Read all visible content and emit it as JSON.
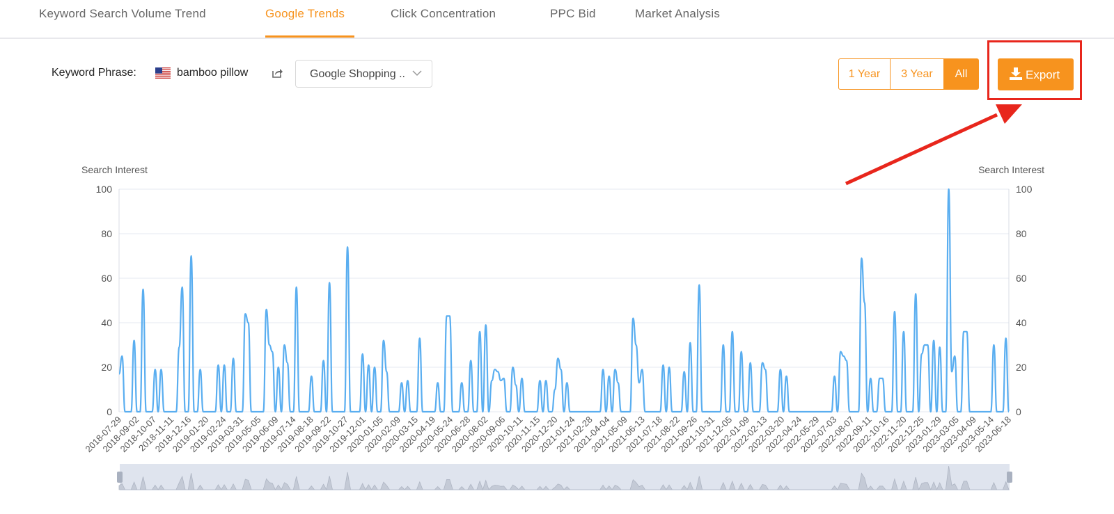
{
  "tabs": [
    {
      "label": "Keyword Search Volume Trend",
      "active": false
    },
    {
      "label": "Google Trends",
      "active": true
    },
    {
      "label": "Click Concentration",
      "active": false
    },
    {
      "label": "PPC Bid",
      "active": false
    },
    {
      "label": "Market Analysis",
      "active": false
    }
  ],
  "keyword": {
    "label": "Keyword Phrase:",
    "flag": "us-flag-icon",
    "value": "bamboo pillow"
  },
  "source_select": {
    "value": "Google Shopping ..."
  },
  "range_buttons": [
    {
      "label": "1 Year",
      "active": false
    },
    {
      "label": "3 Year",
      "active": false
    },
    {
      "label": "All",
      "active": true
    }
  ],
  "export": {
    "label": "Export",
    "icon": "download-icon"
  },
  "colors": {
    "accent": "#f7931e",
    "line": "#5aaef0",
    "highlight": "#e8261c"
  },
  "chart_data": {
    "type": "line",
    "ylabel_left": "Search Interest",
    "ylabel_right": "Search Interest",
    "ylim": [
      0,
      100
    ],
    "yticks": [
      0,
      20,
      40,
      60,
      80,
      100
    ],
    "xtick_labels": [
      "2018-07-29",
      "2018-09-02",
      "2018-10-07",
      "2018-11-11",
      "2018-12-16",
      "2019-01-20",
      "2019-02-24",
      "2019-03-31",
      "2019-05-05",
      "2019-06-09",
      "2019-07-14",
      "2019-08-18",
      "2019-09-22",
      "2019-10-27",
      "2019-12-01",
      "2020-01-05",
      "2020-02-09",
      "2020-03-15",
      "2020-04-19",
      "2020-05-24",
      "2020-06-28",
      "2020-08-02",
      "2020-09-06",
      "2020-10-11",
      "2020-11-15",
      "2020-12-20",
      "2021-01-24",
      "2021-02-28",
      "2021-04-04",
      "2021-05-09",
      "2021-06-13",
      "2021-07-18",
      "2021-08-22",
      "2021-09-26",
      "2021-10-31",
      "2021-12-05",
      "2022-01-09",
      "2022-02-13",
      "2022-03-20",
      "2022-04-24",
      "2022-05-29",
      "2022-07-03",
      "2022-08-07",
      "2022-09-11",
      "2022-10-16",
      "2022-11-20",
      "2022-12-25",
      "2023-01-29",
      "2023-03-05",
      "2023-04-09",
      "2023-05-14",
      "2023-06-18"
    ],
    "series": [
      {
        "values": [
          17,
          25,
          0,
          0,
          0,
          32,
          0,
          0,
          55,
          0,
          0,
          0,
          19,
          0,
          19,
          0,
          0,
          0,
          0,
          0,
          29,
          56,
          0,
          0,
          70,
          0,
          0,
          19,
          0,
          0,
          0,
          0,
          0,
          21,
          0,
          21,
          0,
          0,
          24,
          0,
          0,
          0,
          44,
          40,
          0,
          0,
          0,
          0,
          0,
          46,
          30,
          27,
          0,
          20,
          0,
          30,
          22,
          0,
          0,
          56,
          0,
          0,
          0,
          0,
          16,
          0,
          0,
          0,
          23,
          0,
          58,
          0,
          0,
          0,
          0,
          0,
          74,
          0,
          0,
          0,
          0,
          26,
          0,
          21,
          0,
          20,
          0,
          0,
          32,
          18,
          0,
          0,
          0,
          0,
          13,
          0,
          14,
          0,
          0,
          0,
          33,
          0,
          0,
          0,
          0,
          0,
          13,
          0,
          0,
          43,
          43,
          0,
          0,
          0,
          13,
          0,
          0,
          23,
          0,
          0,
          36,
          0,
          39,
          0,
          14,
          19,
          18,
          14,
          15,
          0,
          0,
          20,
          12,
          0,
          15,
          0,
          0,
          0,
          0,
          0,
          14,
          0,
          14,
          0,
          0,
          10,
          24,
          19,
          0,
          13,
          0,
          0,
          0,
          0,
          0,
          0,
          0,
          0,
          0,
          0,
          0,
          19,
          0,
          16,
          0,
          19,
          13,
          0,
          0,
          0,
          0,
          42,
          30,
          13,
          19,
          0,
          0,
          0,
          0,
          0,
          0,
          21,
          0,
          20,
          0,
          0,
          0,
          0,
          18,
          0,
          31,
          0,
          0,
          57,
          0,
          0,
          0,
          0,
          0,
          0,
          0,
          30,
          0,
          0,
          36,
          0,
          0,
          27,
          0,
          0,
          22,
          0,
          0,
          0,
          22,
          19,
          0,
          0,
          0,
          0,
          19,
          0,
          16,
          0,
          0,
          0,
          0,
          0,
          0,
          0,
          0,
          0,
          0,
          0,
          0,
          0,
          0,
          0,
          16,
          0,
          27,
          25,
          23,
          0,
          0,
          0,
          0,
          69,
          49,
          0,
          15,
          0,
          0,
          15,
          15,
          0,
          0,
          0,
          45,
          0,
          0,
          36,
          0,
          0,
          0,
          53,
          0,
          26,
          30,
          30,
          0,
          32,
          0,
          29,
          0,
          0,
          100,
          18,
          25,
          0,
          0,
          36,
          36,
          0,
          0,
          0,
          0,
          0,
          0,
          0,
          0,
          30,
          0,
          0,
          0,
          33,
          0
        ]
      }
    ]
  }
}
